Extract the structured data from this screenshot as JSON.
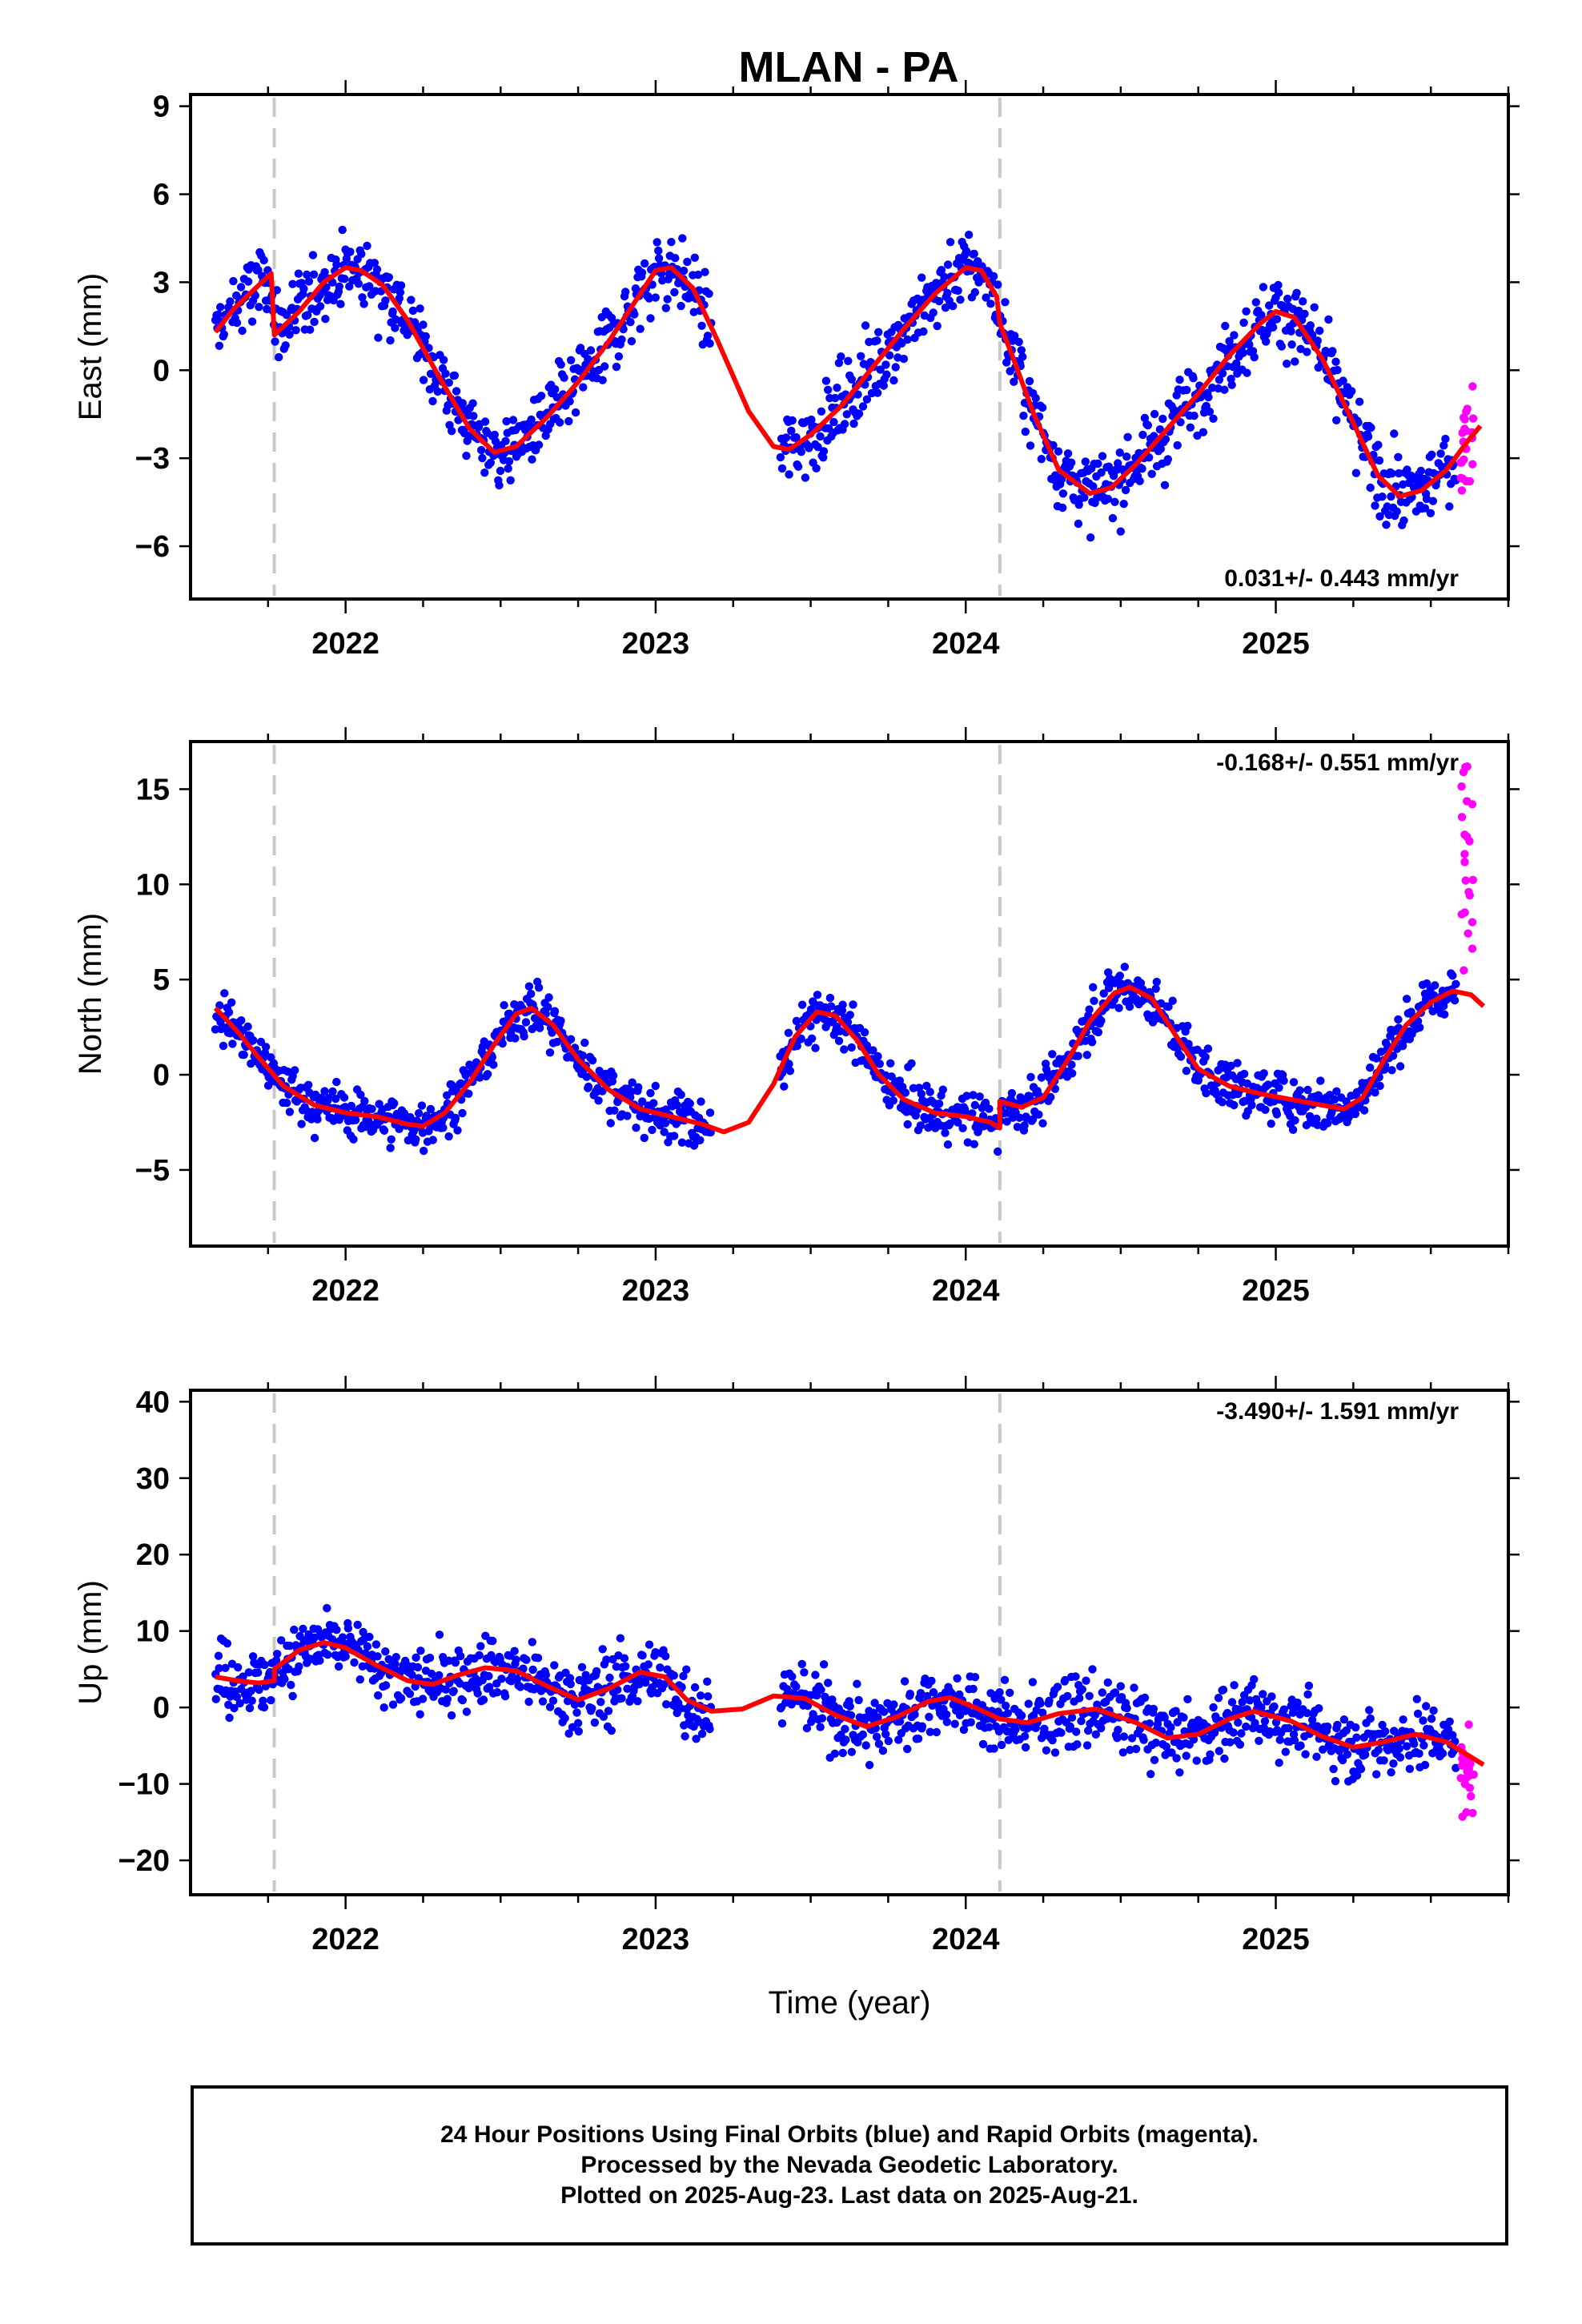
{
  "title": "MLAN - PA",
  "colors": {
    "final": "#0000ff",
    "rapid": "#ff00ff",
    "model": "#ff0000",
    "gap": "#c8c8c8"
  },
  "chart_data": [
    {
      "type": "scatter",
      "ylabel": "East (mm)",
      "xlim": [
        2021.5,
        2025.75
      ],
      "ylim": [
        -7.8,
        9.4
      ],
      "yticks": [
        -6,
        -3,
        0,
        3,
        6,
        9
      ],
      "xticks": [
        2022,
        2023,
        2024,
        2025
      ],
      "offsets": [
        2021.77,
        2024.11
      ],
      "rate": "0.031+/- 0.443 mm/yr",
      "series": [
        {
          "points": [
            [
              2021.58,
              1.3
            ],
            [
              2021.64,
              2.1
            ],
            [
              2021.7,
              2.7
            ],
            [
              2021.76,
              3.3
            ],
            [
              2021.77,
              1.2
            ],
            [
              2021.85,
              2.0
            ],
            [
              2021.93,
              3.0
            ],
            [
              2022.0,
              3.5
            ],
            [
              2022.05,
              3.4
            ],
            [
              2022.12,
              2.9
            ],
            [
              2022.2,
              1.7
            ],
            [
              2022.3,
              -0.2
            ],
            [
              2022.4,
              -2.0
            ],
            [
              2022.48,
              -2.8
            ],
            [
              2022.55,
              -2.6
            ],
            [
              2022.65,
              -1.6
            ],
            [
              2022.75,
              -0.4
            ],
            [
              2022.85,
              1.0
            ],
            [
              2022.95,
              2.6
            ],
            [
              2023.0,
              3.4
            ],
            [
              2023.05,
              3.5
            ],
            [
              2023.12,
              2.8
            ],
            [
              2023.2,
              1.0
            ],
            [
              2023.3,
              -1.4
            ],
            [
              2023.38,
              -2.6
            ],
            [
              2023.43,
              -2.7
            ],
            [
              2023.5,
              -2.2
            ],
            [
              2023.6,
              -1.2
            ],
            [
              2023.7,
              0.1
            ],
            [
              2023.8,
              1.4
            ],
            [
              2023.9,
              2.6
            ],
            [
              2024.0,
              3.5
            ],
            [
              2024.05,
              3.4
            ],
            [
              2024.1,
              2.5
            ],
            [
              2024.11,
              1.6
            ],
            [
              2024.15,
              0.5
            ],
            [
              2024.22,
              -1.5
            ],
            [
              2024.3,
              -3.4
            ],
            [
              2024.4,
              -4.2
            ],
            [
              2024.47,
              -4.0
            ],
            [
              2024.55,
              -3.2
            ],
            [
              2024.65,
              -2.0
            ],
            [
              2024.75,
              -0.8
            ],
            [
              2024.85,
              0.5
            ],
            [
              2024.95,
              1.6
            ],
            [
              2025.0,
              2.0
            ],
            [
              2025.06,
              1.8
            ],
            [
              2025.15,
              0.4
            ],
            [
              2025.25,
              -1.8
            ],
            [
              2025.33,
              -3.6
            ],
            [
              2025.4,
              -4.3
            ],
            [
              2025.47,
              -4.1
            ],
            [
              2025.55,
              -3.4
            ],
            [
              2025.62,
              -2.4
            ],
            [
              2025.66,
              -1.9
            ]
          ]
        }
      ]
    },
    {
      "type": "scatter",
      "ylabel": "North (mm)",
      "xlim": [
        2021.5,
        2025.75
      ],
      "ylim": [
        -9.0,
        17.5
      ],
      "yticks": [
        -5,
        0,
        5,
        10,
        15
      ],
      "xticks": [
        2022,
        2023,
        2024,
        2025
      ],
      "offsets": [
        2021.77,
        2024.11
      ],
      "rate": "-0.168+/- 0.551 mm/yr",
      "series": [
        {
          "points": [
            [
              2021.58,
              3.5
            ],
            [
              2021.65,
              2.3
            ],
            [
              2021.72,
              0.9
            ],
            [
              2021.8,
              -0.6
            ],
            [
              2021.9,
              -1.6
            ],
            [
              2022.0,
              -2.0
            ],
            [
              2022.1,
              -2.2
            ],
            [
              2022.2,
              -2.6
            ],
            [
              2022.25,
              -2.7
            ],
            [
              2022.32,
              -2.0
            ],
            [
              2022.4,
              -0.4
            ],
            [
              2022.48,
              1.6
            ],
            [
              2022.55,
              3.2
            ],
            [
              2022.6,
              3.5
            ],
            [
              2022.67,
              2.6
            ],
            [
              2022.75,
              0.8
            ],
            [
              2022.85,
              -0.8
            ],
            [
              2022.95,
              -1.8
            ],
            [
              2023.05,
              -2.2
            ],
            [
              2023.15,
              -2.6
            ],
            [
              2023.22,
              -3.0
            ],
            [
              2023.3,
              -2.5
            ],
            [
              2023.38,
              -0.5
            ],
            [
              2023.45,
              2.0
            ],
            [
              2023.52,
              3.3
            ],
            [
              2023.58,
              3.1
            ],
            [
              2023.65,
              1.8
            ],
            [
              2023.72,
              0.0
            ],
            [
              2023.8,
              -1.3
            ],
            [
              2023.9,
              -2.0
            ],
            [
              2024.0,
              -2.2
            ],
            [
              2024.08,
              -2.5
            ],
            [
              2024.11,
              -2.8
            ],
            [
              2024.11,
              -1.4
            ],
            [
              2024.18,
              -1.7
            ],
            [
              2024.25,
              -1.2
            ],
            [
              2024.33,
              0.8
            ],
            [
              2024.4,
              2.8
            ],
            [
              2024.48,
              4.3
            ],
            [
              2024.53,
              4.6
            ],
            [
              2024.6,
              4.0
            ],
            [
              2024.68,
              2.0
            ],
            [
              2024.75,
              0.3
            ],
            [
              2024.85,
              -0.6
            ],
            [
              2024.95,
              -1.0
            ],
            [
              2025.05,
              -1.3
            ],
            [
              2025.15,
              -1.6
            ],
            [
              2025.22,
              -1.8
            ],
            [
              2025.28,
              -1.2
            ],
            [
              2025.35,
              0.8
            ],
            [
              2025.42,
              2.6
            ],
            [
              2025.5,
              3.8
            ],
            [
              2025.57,
              4.4
            ],
            [
              2025.63,
              4.2
            ],
            [
              2025.67,
              3.6
            ]
          ]
        }
      ]
    },
    {
      "type": "scatter",
      "ylabel": "Up (mm)",
      "xlabel": "Time (year)",
      "xlim": [
        2021.5,
        2025.75
      ],
      "ylim": [
        -24.5,
        41.5
      ],
      "yticks": [
        -20,
        -10,
        0,
        10,
        20,
        30,
        40
      ],
      "xticks": [
        2022,
        2023,
        2024,
        2025
      ],
      "offsets": [
        2021.77,
        2024.11
      ],
      "rate": "-3.490+/- 1.591 mm/yr",
      "series": [
        {
          "points": [
            [
              2021.58,
              4.0
            ],
            [
              2021.65,
              3.5
            ],
            [
              2021.72,
              3.2
            ],
            [
              2021.77,
              3.5
            ],
            [
              2021.77,
              5.0
            ],
            [
              2021.85,
              7.5
            ],
            [
              2021.93,
              8.5
            ],
            [
              2022.0,
              7.8
            ],
            [
              2022.1,
              5.5
            ],
            [
              2022.2,
              3.5
            ],
            [
              2022.28,
              3.0
            ],
            [
              2022.36,
              4.2
            ],
            [
              2022.45,
              5.2
            ],
            [
              2022.55,
              4.8
            ],
            [
              2022.65,
              2.8
            ],
            [
              2022.75,
              1.0
            ],
            [
              2022.85,
              2.5
            ],
            [
              2022.95,
              4.6
            ],
            [
              2023.03,
              4.0
            ],
            [
              2023.1,
              1.0
            ],
            [
              2023.18,
              -0.5
            ],
            [
              2023.28,
              -0.2
            ],
            [
              2023.38,
              1.5
            ],
            [
              2023.48,
              1.2
            ],
            [
              2023.58,
              -1.0
            ],
            [
              2023.68,
              -2.5
            ],
            [
              2023.78,
              -1.2
            ],
            [
              2023.88,
              0.8
            ],
            [
              2023.95,
              1.3
            ],
            [
              2024.03,
              0.0
            ],
            [
              2024.11,
              -1.5
            ],
            [
              2024.2,
              -2.0
            ],
            [
              2024.3,
              -0.8
            ],
            [
              2024.42,
              -0.2
            ],
            [
              2024.55,
              -2.0
            ],
            [
              2024.65,
              -4.0
            ],
            [
              2024.75,
              -3.5
            ],
            [
              2024.85,
              -1.5
            ],
            [
              2024.93,
              -0.5
            ],
            [
              2025.05,
              -1.8
            ],
            [
              2025.15,
              -3.8
            ],
            [
              2025.25,
              -5.2
            ],
            [
              2025.35,
              -4.5
            ],
            [
              2025.45,
              -3.5
            ],
            [
              2025.55,
              -4.5
            ],
            [
              2025.67,
              -7.5
            ]
          ]
        }
      ]
    }
  ],
  "caption": {
    "line1": "24 Hour Positions Using Final Orbits (blue) and Rapid Orbits (magenta).",
    "line2": "Processed by the Nevada Geodetic Laboratory.",
    "line3": "Plotted on 2025-Aug-23. Last data on 2025-Aug-21."
  }
}
